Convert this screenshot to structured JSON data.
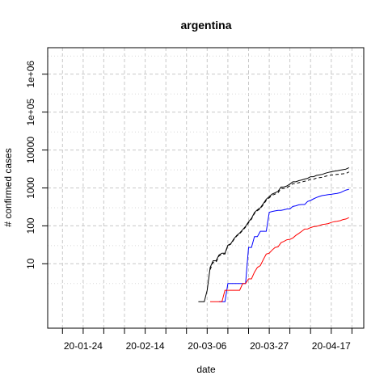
{
  "chart_data": {
    "type": "line",
    "title": "argentina",
    "xlabel": "date",
    "ylabel": "# confirmed cases",
    "x_axis": {
      "type": "date",
      "range": [
        "2020-01-12",
        "2020-04-28"
      ],
      "tick_dates": [
        "2020-01-17",
        "2020-01-24",
        "2020-01-31",
        "2020-02-07",
        "2020-02-14",
        "2020-02-21",
        "2020-02-28",
        "2020-03-06",
        "2020-03-13",
        "2020-03-20",
        "2020-03-27",
        "2020-04-03",
        "2020-04-10",
        "2020-04-17",
        "2020-04-24"
      ],
      "labeled_ticks": [
        {
          "date": "2020-01-24",
          "label": "20-01-24"
        },
        {
          "date": "2020-02-14",
          "label": "20-02-14"
        },
        {
          "date": "2020-03-06",
          "label": "20-03-06"
        },
        {
          "date": "2020-03-27",
          "label": "20-03-27"
        },
        {
          "date": "2020-04-17",
          "label": "20-04-17"
        }
      ]
    },
    "y_axis": {
      "scale": "log",
      "range": [
        0.2,
        5000000
      ],
      "labeled_ticks": [
        {
          "value": 10,
          "label": "10"
        },
        {
          "value": 100,
          "label": "100"
        },
        {
          "value": 1000,
          "label": "1000"
        },
        {
          "value": 10000,
          "label": "10000"
        },
        {
          "value": 100000,
          "label": "1e+05"
        },
        {
          "value": 1000000,
          "label": "1e+06"
        }
      ],
      "minor_gridlines": [
        3,
        30,
        300,
        3000,
        30000,
        300000,
        3000000
      ]
    },
    "grid": true,
    "series": [
      {
        "color": "#000000",
        "dash": "solid",
        "points": [
          [
            "2020-03-03",
            1
          ],
          [
            "2020-03-05",
            1
          ],
          [
            "2020-03-06",
            2
          ],
          [
            "2020-03-07",
            8
          ],
          [
            "2020-03-08",
            12
          ],
          [
            "2020-03-09",
            12
          ],
          [
            "2020-03-10",
            17
          ],
          [
            "2020-03-11",
            19
          ],
          [
            "2020-03-12",
            19
          ],
          [
            "2020-03-13",
            31
          ],
          [
            "2020-03-14",
            34
          ],
          [
            "2020-03-15",
            45
          ],
          [
            "2020-03-16",
            56
          ],
          [
            "2020-03-17",
            65
          ],
          [
            "2020-03-18",
            79
          ],
          [
            "2020-03-19",
            97
          ],
          [
            "2020-03-20",
            128
          ],
          [
            "2020-03-21",
            158
          ],
          [
            "2020-03-22",
            225
          ],
          [
            "2020-03-23",
            266
          ],
          [
            "2020-03-24",
            301
          ],
          [
            "2020-03-25",
            387
          ],
          [
            "2020-03-26",
            502
          ],
          [
            "2020-03-27",
            589
          ],
          [
            "2020-03-28",
            690
          ],
          [
            "2020-03-29",
            745
          ],
          [
            "2020-03-30",
            820
          ],
          [
            "2020-03-31",
            1054
          ],
          [
            "2020-04-01",
            1054
          ],
          [
            "2020-04-02",
            1133
          ],
          [
            "2020-04-03",
            1265
          ],
          [
            "2020-04-04",
            1451
          ],
          [
            "2020-04-05",
            1451
          ],
          [
            "2020-04-06",
            1554
          ],
          [
            "2020-04-07",
            1628
          ],
          [
            "2020-04-08",
            1715
          ],
          [
            "2020-04-09",
            1795
          ],
          [
            "2020-04-10",
            1975
          ],
          [
            "2020-04-11",
            1975
          ],
          [
            "2020-04-12",
            2142
          ],
          [
            "2020-04-13",
            2208
          ],
          [
            "2020-04-14",
            2277
          ],
          [
            "2020-04-15",
            2443
          ],
          [
            "2020-04-16",
            2571
          ],
          [
            "2020-04-17",
            2669
          ],
          [
            "2020-04-18",
            2758
          ],
          [
            "2020-04-19",
            2839
          ],
          [
            "2020-04-20",
            2941
          ],
          [
            "2020-04-21",
            3031
          ],
          [
            "2020-04-22",
            3144
          ],
          [
            "2020-04-23",
            3435
          ]
        ]
      },
      {
        "color": "#000000",
        "dash": "dashed",
        "points": [
          [
            "2020-03-07",
            7
          ],
          [
            "2020-03-08",
            11
          ],
          [
            "2020-03-09",
            11
          ],
          [
            "2020-03-10",
            16
          ],
          [
            "2020-03-11",
            18
          ],
          [
            "2020-03-12",
            18
          ],
          [
            "2020-03-13",
            30
          ],
          [
            "2020-03-14",
            33
          ],
          [
            "2020-03-15",
            43
          ],
          [
            "2020-03-16",
            54
          ],
          [
            "2020-03-17",
            62
          ],
          [
            "2020-03-18",
            76
          ],
          [
            "2020-03-19",
            93
          ],
          [
            "2020-03-20",
            121
          ],
          [
            "2020-03-21",
            150
          ],
          [
            "2020-03-22",
            213
          ],
          [
            "2020-03-23",
            252
          ],
          [
            "2020-03-24",
            284
          ],
          [
            "2020-03-25",
            364
          ],
          [
            "2020-03-26",
            469
          ],
          [
            "2020-03-27",
            548
          ],
          [
            "2020-03-28",
            640
          ],
          [
            "2020-03-29",
            690
          ],
          [
            "2020-03-30",
            752
          ],
          [
            "2020-03-31",
            961
          ],
          [
            "2020-04-01",
            961
          ],
          [
            "2020-04-02",
            1025
          ],
          [
            "2020-04-03",
            1135
          ],
          [
            "2020-04-04",
            1294
          ],
          [
            "2020-04-05",
            1294
          ],
          [
            "2020-04-06",
            1379
          ],
          [
            "2020-04-07",
            1433
          ],
          [
            "2020-04-08",
            1502
          ],
          [
            "2020-04-09",
            1561
          ],
          [
            "2020-04-10",
            1701
          ],
          [
            "2020-04-11",
            1701
          ],
          [
            "2020-04-12",
            1823
          ],
          [
            "2020-04-13",
            1868
          ],
          [
            "2020-04-14",
            1913
          ],
          [
            "2020-04-15",
            2031
          ],
          [
            "2020-04-16",
            2118
          ],
          [
            "2020-04-17",
            2178
          ],
          [
            "2020-04-18",
            2227
          ],
          [
            "2020-04-19",
            2268
          ],
          [
            "2020-04-20",
            2318
          ],
          [
            "2020-04-21",
            2362
          ],
          [
            "2020-04-22",
            2420
          ],
          [
            "2020-04-23",
            2640
          ]
        ]
      },
      {
        "color": "#0000ff",
        "dash": "solid",
        "points": [
          [
            "2020-03-10",
            1
          ],
          [
            "2020-03-12",
            1
          ],
          [
            "2020-03-13",
            3
          ],
          [
            "2020-03-17",
            3
          ],
          [
            "2020-03-18",
            3
          ],
          [
            "2020-03-19",
            3
          ],
          [
            "2020-03-20",
            27
          ],
          [
            "2020-03-21",
            27
          ],
          [
            "2020-03-22",
            52
          ],
          [
            "2020-03-23",
            52
          ],
          [
            "2020-03-24",
            72
          ],
          [
            "2020-03-25",
            72
          ],
          [
            "2020-03-26",
            72
          ],
          [
            "2020-03-27",
            228
          ],
          [
            "2020-03-28",
            240
          ],
          [
            "2020-03-29",
            248
          ],
          [
            "2020-03-30",
            256
          ],
          [
            "2020-03-31",
            256
          ],
          [
            "2020-04-01",
            266
          ],
          [
            "2020-04-02",
            279
          ],
          [
            "2020-04-03",
            279
          ],
          [
            "2020-04-04",
            325
          ],
          [
            "2020-04-05",
            338
          ],
          [
            "2020-04-06",
            358
          ],
          [
            "2020-04-07",
            365
          ],
          [
            "2020-04-08",
            365
          ],
          [
            "2020-04-09",
            440
          ],
          [
            "2020-04-10",
            468
          ],
          [
            "2020-04-11",
            515
          ],
          [
            "2020-04-12",
            559
          ],
          [
            "2020-04-13",
            596
          ],
          [
            "2020-04-14",
            629
          ],
          [
            "2020-04-15",
            647
          ],
          [
            "2020-04-16",
            666
          ],
          [
            "2020-04-17",
            680
          ],
          [
            "2020-04-18",
            699
          ],
          [
            "2020-04-19",
            720
          ],
          [
            "2020-04-20",
            750
          ],
          [
            "2020-04-21",
            815
          ],
          [
            "2020-04-22",
            880
          ],
          [
            "2020-04-23",
            916
          ]
        ]
      },
      {
        "color": "#ff0000",
        "dash": "solid",
        "points": [
          [
            "2020-03-07",
            1
          ],
          [
            "2020-03-09",
            1
          ],
          [
            "2020-03-10",
            1
          ],
          [
            "2020-03-11",
            1
          ],
          [
            "2020-03-12",
            2
          ],
          [
            "2020-03-15",
            2
          ],
          [
            "2020-03-16",
            2
          ],
          [
            "2020-03-17",
            2
          ],
          [
            "2020-03-18",
            3
          ],
          [
            "2020-03-19",
            3
          ],
          [
            "2020-03-20",
            4
          ],
          [
            "2020-03-21",
            4
          ],
          [
            "2020-03-22",
            6
          ],
          [
            "2020-03-23",
            8
          ],
          [
            "2020-03-24",
            9
          ],
          [
            "2020-03-25",
            13
          ],
          [
            "2020-03-26",
            18
          ],
          [
            "2020-03-27",
            19
          ],
          [
            "2020-03-28",
            23
          ],
          [
            "2020-03-29",
            27
          ],
          [
            "2020-03-30",
            28
          ],
          [
            "2020-03-31",
            36
          ],
          [
            "2020-04-01",
            39
          ],
          [
            "2020-04-02",
            43
          ],
          [
            "2020-04-03",
            44
          ],
          [
            "2020-04-04",
            48
          ],
          [
            "2020-04-05",
            56
          ],
          [
            "2020-04-06",
            63
          ],
          [
            "2020-04-07",
            72
          ],
          [
            "2020-04-08",
            82
          ],
          [
            "2020-04-09",
            83
          ],
          [
            "2020-04-10",
            90
          ],
          [
            "2020-04-11",
            95
          ],
          [
            "2020-04-12",
            97
          ],
          [
            "2020-04-13",
            102
          ],
          [
            "2020-04-14",
            108
          ],
          [
            "2020-04-15",
            111
          ],
          [
            "2020-04-16",
            115
          ],
          [
            "2020-04-17",
            123
          ],
          [
            "2020-04-18",
            129
          ],
          [
            "2020-04-19",
            132
          ],
          [
            "2020-04-20",
            137
          ],
          [
            "2020-04-21",
            147
          ],
          [
            "2020-04-22",
            152
          ],
          [
            "2020-04-23",
            165
          ]
        ]
      }
    ]
  }
}
